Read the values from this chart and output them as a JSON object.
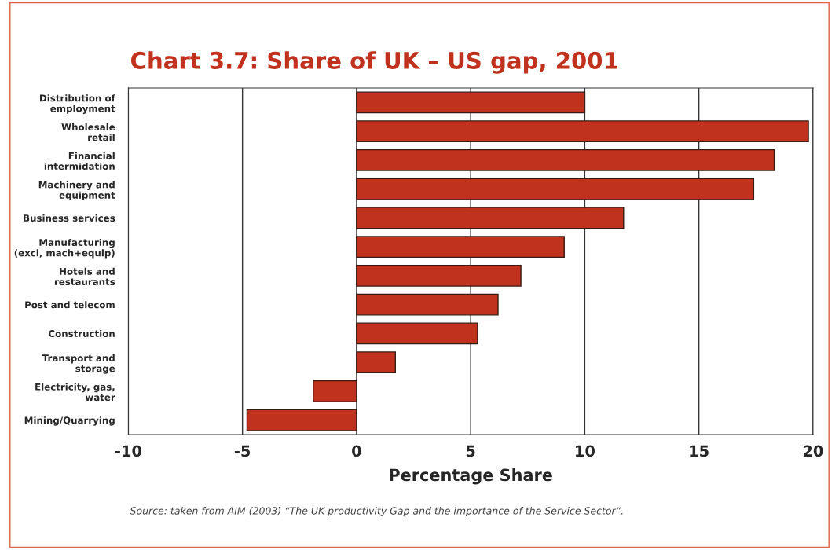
{
  "chart_data": {
    "type": "bar",
    "orientation": "horizontal",
    "title": "Chart 3.7: Share of UK – US gap, 2001",
    "xlabel": "Percentage Share",
    "categories": [
      "Distribution of\nemployment",
      "Wholesale\nretail",
      "Financial\nintermidation",
      "Machinery and\nequipment",
      "Business services",
      "Manufacturing\n(excl, mach+equip)",
      "Hotels and\nrestaurants",
      "Post and telecom",
      "Construction",
      "Transport and\nstorage",
      "Electricity, gas,\nwater",
      "Mining/Quarrying"
    ],
    "values": [
      10.0,
      19.8,
      18.3,
      17.4,
      11.7,
      9.1,
      7.2,
      6.2,
      5.3,
      1.7,
      -1.9,
      -4.8
    ],
    "color": "#c0311e",
    "xlim": [
      -10,
      20
    ],
    "xticks": [
      -10,
      -5,
      0,
      5,
      10,
      15,
      20
    ],
    "grid": "x",
    "annotations": [
      "Source: taken from AIM (2003) “The UK productivity Gap and the importance of the Service Sector”."
    ]
  }
}
